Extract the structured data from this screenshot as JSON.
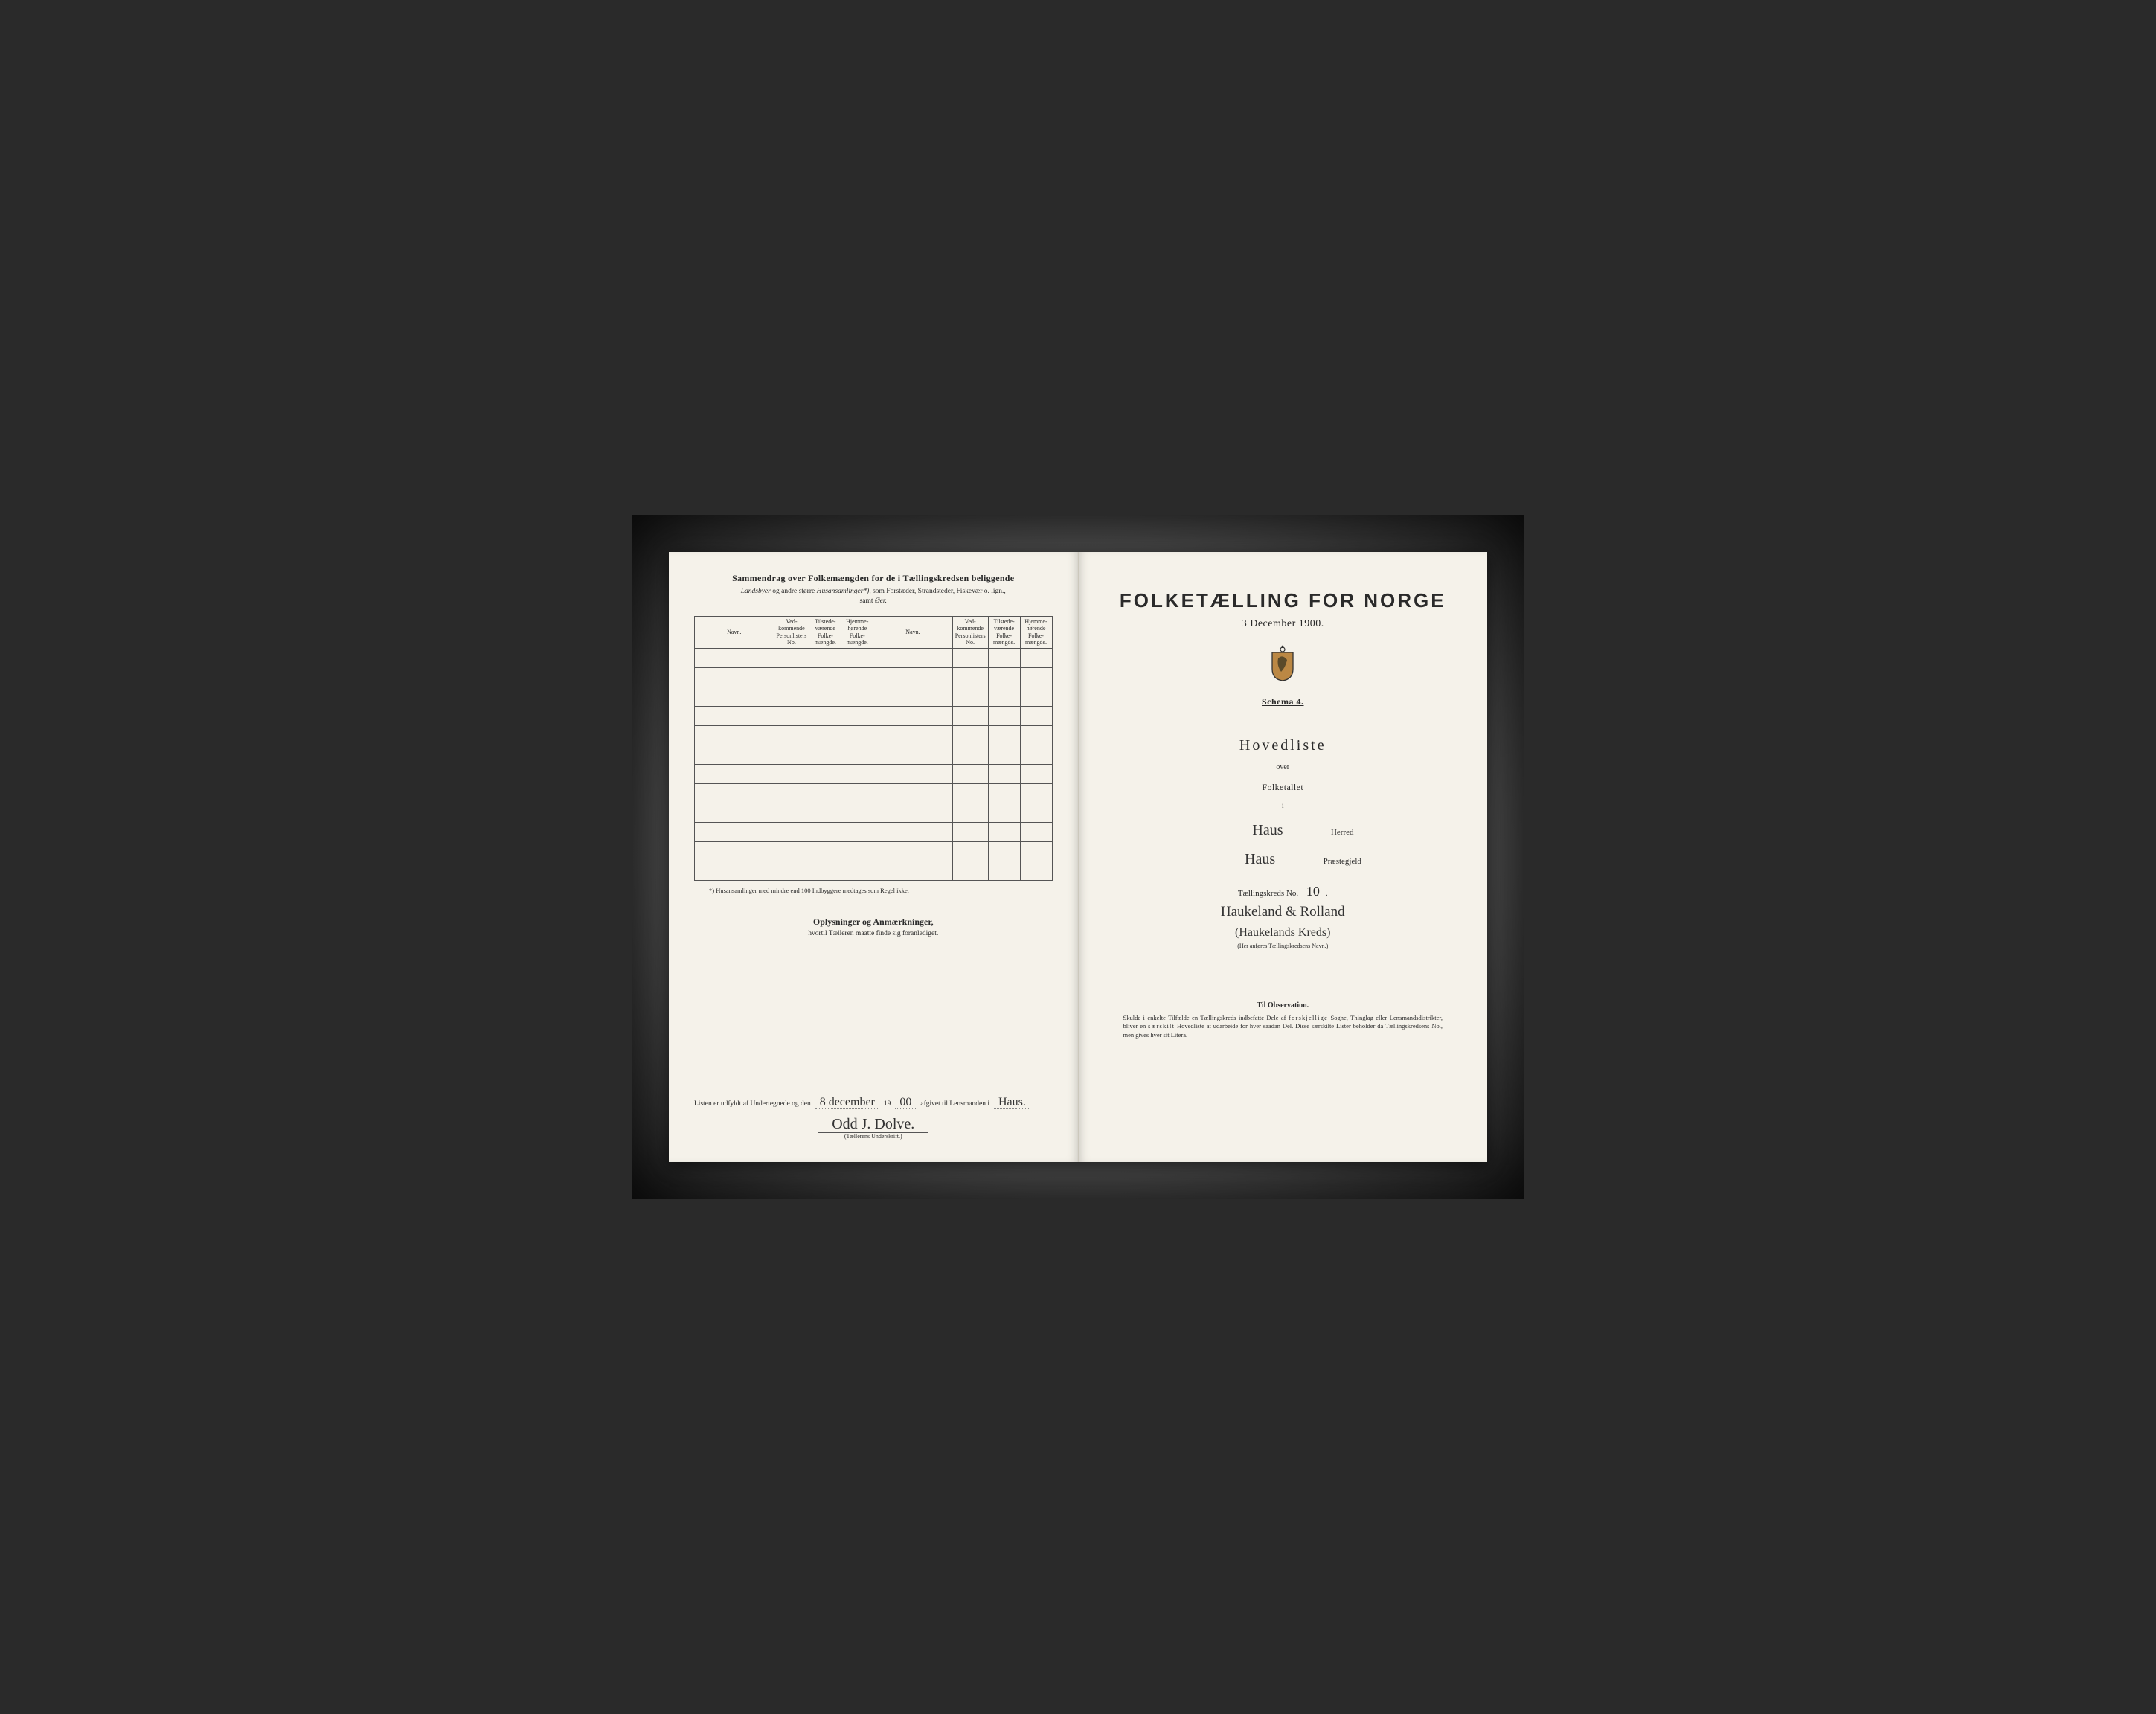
{
  "colors": {
    "page_bg": "#f5f2ea",
    "frame_bg_inner": "#888888",
    "frame_bg_outer": "#1a1a1a",
    "text": "#2a2a2a",
    "rule": "#555555",
    "dotted": "#888888"
  },
  "typography": {
    "body_family": "Times New Roman",
    "title_family": "Arial Narrow",
    "script_family": "Brush Script MT",
    "left_title_pt": 12,
    "census_title_pt": 26,
    "hovedliste_pt": 20
  },
  "left": {
    "title": "Sammendrag over Folkemængden for de i Tællingskredsen beliggende",
    "subtitle_italic_a": "Landsbyer",
    "subtitle_plain_a": " og andre større ",
    "subtitle_italic_b": "Husansamlinger*)",
    "subtitle_plain_b": ", som Forstæder, Strandsteder, Fiskevær o. lign.,",
    "subtitle_line2_plain": "samt ",
    "subtitle_line2_italic": "Øer.",
    "table": {
      "headers": {
        "navn": "Navn.",
        "ved": "Ved-\nkommende\nPersonlisters\nNo.",
        "tilstede": "Tilstede-\nværende\nFolke-\nmængde.",
        "hjemme": "Hjemme-\nhørende\nFolke-\nmængde."
      },
      "row_count": 12,
      "col_structure": "navn|ved|tilstede|hjemme × 2"
    },
    "footnote": "*) Husansamlinger med mindre end 100 Indbyggere medtages som Regel ikke.",
    "oplys_title": "Oplysninger og Anmærkninger,",
    "oplys_sub": "hvortil Tælleren maatte finde sig foranlediget.",
    "sig_prefix": "Listen er udfyldt af Undertegnede og den",
    "sig_date": "8 december",
    "sig_year_prefix": "19",
    "sig_year_fill": "00",
    "sig_mid": "afgivet til Lensmanden i",
    "sig_place": "Haus.",
    "sig_name": "Odd J. Dolve.",
    "sig_caption": "(Tællerens Underskrift.)"
  },
  "right": {
    "title": "FOLKETÆLLING FOR NORGE",
    "date": "3 December 1900.",
    "schema": "Schema 4.",
    "hovedliste": "Hovedliste",
    "over": "over",
    "folketallet": "Folketallet",
    "i": "i",
    "herred_value": "Haus",
    "herred_label": "Herred",
    "prestegjeld_value": "Haus",
    "prestegjeld_label": "Præstegjeld",
    "kreds_label": "Tællingskreds No.",
    "kreds_no": "10",
    "kreds_name_line1": "Haukeland & Rolland",
    "kreds_name_line2": "(Haukelands Kreds)",
    "kreds_caption": "(Her anføres Tællingskredsens Navn.)",
    "obs_title": "Til Observation.",
    "obs_body": "Skulde i enkelte Tilfælde en Tællingskreds indbefatte Dele af forskjellige Sogne, Thinglag eller Lensmandsdistrikter, bliver en særskilt Hovedliste at udarbeide for hver saadan Del. Disse særskilte Lister beholder da Tællingskredsens No., men gives hver sit Litera."
  }
}
